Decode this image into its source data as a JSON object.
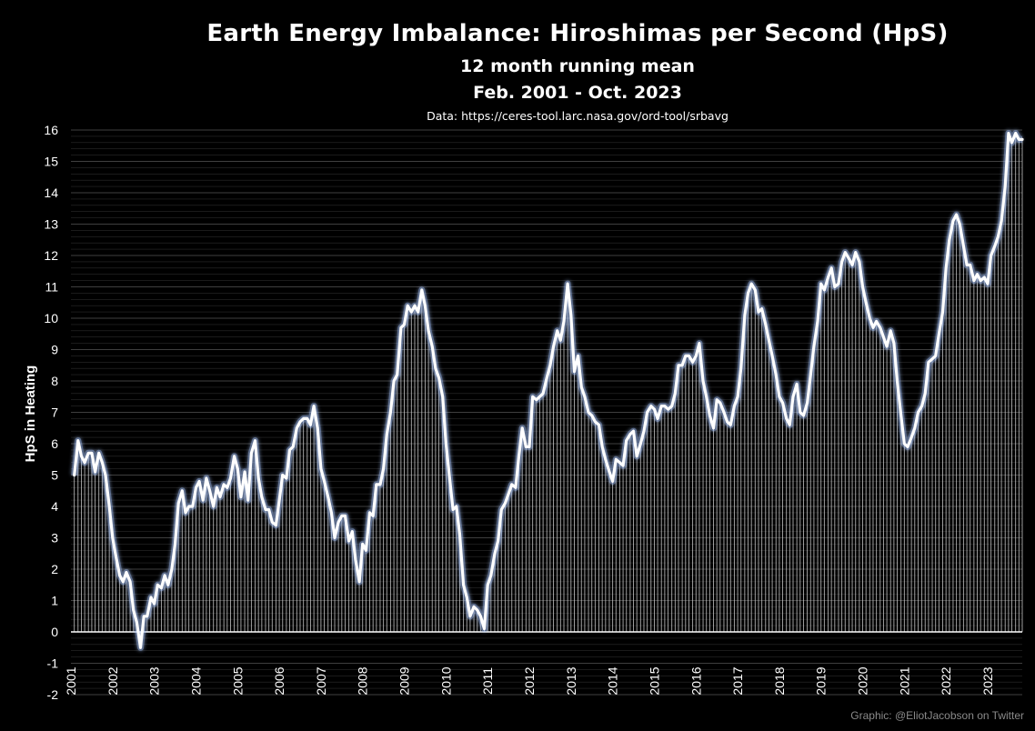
{
  "chart_data": {
    "type": "line",
    "title": "Earth Energy Imbalance: Hiroshimas per Second (HpS)",
    "subtitle": [
      "12 month running mean",
      "Feb. 2001 - Oct. 2023"
    ],
    "source": "Data: https://ceres-tool.larc.nasa.gov/ord-tool/srbavg",
    "credit": "Graphic: @EliotJacobson on Twitter",
    "xlabel": "",
    "ylabel": "HpS in Heating",
    "ylim": [
      -2,
      16
    ],
    "yticks": [
      -2,
      -1,
      0,
      1,
      2,
      3,
      4,
      5,
      6,
      7,
      8,
      9,
      10,
      11,
      12,
      13,
      14,
      15,
      16
    ],
    "xlim": [
      2001.0,
      2023.83
    ],
    "xticks": [
      "2001",
      "2002",
      "2003",
      "2004",
      "2005",
      "2006",
      "2007",
      "2008",
      "2009",
      "2010",
      "2011",
      "2012",
      "2013",
      "2014",
      "2015",
      "2016",
      "2017",
      "2018",
      "2019",
      "2020",
      "2021",
      "2022",
      "2023"
    ],
    "grid": true,
    "line_color": "#ffffff",
    "line_glow": "#a9c7ff",
    "series": [
      {
        "x": [
          2001.08,
          2001.17,
          2001.25,
          2001.33,
          2001.42,
          2001.5,
          2001.58,
          2001.67,
          2001.75,
          2001.83,
          2001.92,
          2002.0,
          2002.08,
          2002.17,
          2002.25,
          2002.33,
          2002.42,
          2002.5,
          2002.58,
          2002.67,
          2002.75,
          2002.83,
          2002.92,
          2003.0,
          2003.08,
          2003.17,
          2003.25,
          2003.33,
          2003.42,
          2003.5,
          2003.58,
          2003.67,
          2003.75,
          2003.83,
          2003.92,
          2004.0,
          2004.08,
          2004.17,
          2004.25,
          2004.33,
          2004.42,
          2004.5,
          2004.58,
          2004.67,
          2004.75,
          2004.83,
          2004.92,
          2005.0,
          2005.08,
          2005.17,
          2005.25,
          2005.33,
          2005.42,
          2005.5,
          2005.58,
          2005.67,
          2005.75,
          2005.83,
          2005.92,
          2006.0,
          2006.08,
          2006.17,
          2006.25,
          2006.33,
          2006.42,
          2006.5,
          2006.58,
          2006.67,
          2006.75,
          2006.83,
          2006.92,
          2007.0,
          2007.08,
          2007.17,
          2007.25,
          2007.33,
          2007.42,
          2007.5,
          2007.58,
          2007.67,
          2007.75,
          2007.83,
          2007.92,
          2008.0,
          2008.08,
          2008.17,
          2008.25,
          2008.33,
          2008.42,
          2008.5,
          2008.58,
          2008.67,
          2008.75,
          2008.83,
          2008.92,
          2009.0,
          2009.08,
          2009.17,
          2009.25,
          2009.33,
          2009.42,
          2009.5,
          2009.58,
          2009.67,
          2009.75,
          2009.83,
          2009.92,
          2010.0,
          2010.08,
          2010.17,
          2010.25,
          2010.33,
          2010.42,
          2010.5,
          2010.58,
          2010.67,
          2010.75,
          2010.83,
          2010.92,
          2011.0,
          2011.08,
          2011.17,
          2011.25,
          2011.33,
          2011.42,
          2011.5,
          2011.58,
          2011.67,
          2011.75,
          2011.83,
          2011.92,
          2012.0,
          2012.08,
          2012.17,
          2012.25,
          2012.33,
          2012.42,
          2012.5,
          2012.58,
          2012.67,
          2012.75,
          2012.83,
          2012.92,
          2013.0,
          2013.08,
          2013.17,
          2013.25,
          2013.33,
          2013.42,
          2013.5,
          2013.58,
          2013.67,
          2013.75,
          2013.83,
          2013.92,
          2014.0,
          2014.08,
          2014.17,
          2014.25,
          2014.33,
          2014.42,
          2014.5,
          2014.58,
          2014.67,
          2014.75,
          2014.83,
          2014.92,
          2015.0,
          2015.08,
          2015.17,
          2015.25,
          2015.33,
          2015.42,
          2015.5,
          2015.58,
          2015.67,
          2015.75,
          2015.83,
          2015.92,
          2016.0,
          2016.08,
          2016.17,
          2016.25,
          2016.33,
          2016.42,
          2016.5,
          2016.58,
          2016.67,
          2016.75,
          2016.83,
          2016.92,
          2017.0,
          2017.08,
          2017.17,
          2017.25,
          2017.33,
          2017.42,
          2017.5,
          2017.58,
          2017.67,
          2017.75,
          2017.83,
          2017.92,
          2018.0,
          2018.08,
          2018.17,
          2018.25,
          2018.33,
          2018.42,
          2018.5,
          2018.58,
          2018.67,
          2018.75,
          2018.83,
          2018.92,
          2019.0,
          2019.08,
          2019.17,
          2019.25,
          2019.33,
          2019.42,
          2019.5,
          2019.58,
          2019.67,
          2019.75,
          2019.83,
          2019.92,
          2020.0,
          2020.08,
          2020.17,
          2020.25,
          2020.33,
          2020.42,
          2020.5,
          2020.58,
          2020.67,
          2020.75,
          2020.83,
          2020.92,
          2021.0,
          2021.08,
          2021.17,
          2021.25,
          2021.33,
          2021.42,
          2021.5,
          2021.58,
          2021.67,
          2021.75,
          2021.83,
          2021.92,
          2022.0,
          2022.08,
          2022.17,
          2022.25,
          2022.33,
          2022.42,
          2022.5,
          2022.58,
          2022.67,
          2022.75,
          2022.83,
          2022.92,
          2023.0,
          2023.08,
          2023.17,
          2023.25,
          2023.33,
          2023.42,
          2023.5,
          2023.58,
          2023.67,
          2023.75,
          2023.83
        ],
        "y": [
          5.0,
          6.1,
          5.6,
          5.4,
          5.7,
          5.7,
          5.1,
          5.7,
          5.4,
          5.0,
          4.0,
          3.0,
          2.4,
          1.8,
          1.6,
          1.9,
          1.6,
          0.7,
          0.3,
          -0.5,
          0.5,
          0.5,
          1.1,
          0.9,
          1.5,
          1.4,
          1.8,
          1.5,
          2.0,
          2.8,
          4.1,
          4.5,
          3.8,
          4.0,
          4.0,
          4.6,
          4.8,
          4.2,
          4.9,
          4.5,
          4.0,
          4.6,
          4.3,
          4.7,
          4.6,
          4.9,
          5.6,
          5.2,
          4.3,
          5.1,
          4.2,
          5.7,
          6.1,
          4.9,
          4.3,
          3.9,
          3.9,
          3.5,
          3.4,
          4.2,
          5.0,
          4.9,
          5.8,
          5.9,
          6.5,
          6.7,
          6.8,
          6.8,
          6.6,
          7.2,
          6.5,
          5.2,
          4.8,
          4.3,
          3.8,
          3.0,
          3.5,
          3.7,
          3.7,
          2.9,
          3.2,
          2.3,
          1.6,
          2.8,
          2.6,
          3.8,
          3.7,
          4.7,
          4.7,
          5.2,
          6.3,
          7.0,
          8.0,
          8.2,
          9.7,
          9.8,
          10.4,
          10.2,
          10.4,
          10.2,
          10.9,
          10.4,
          9.6,
          9.1,
          8.4,
          8.1,
          7.5,
          6.0,
          5.0,
          3.9,
          4.0,
          3.1,
          1.5,
          1.1,
          0.5,
          0.8,
          0.7,
          0.5,
          0.1,
          1.5,
          1.8,
          2.5,
          2.9,
          3.9,
          4.1,
          4.4,
          4.7,
          4.6,
          5.6,
          6.5,
          5.9,
          5.9,
          7.5,
          7.4,
          7.5,
          7.6,
          8.1,
          8.5,
          9.1,
          9.6,
          9.3,
          9.9,
          11.1,
          10.1,
          8.3,
          8.8,
          7.8,
          7.5,
          7.0,
          6.9,
          6.7,
          6.6,
          5.9,
          5.5,
          5.1,
          4.8,
          5.5,
          5.4,
          5.3,
          6.1,
          6.3,
          6.4,
          5.6,
          6.0,
          6.4,
          7.0,
          7.2,
          7.1,
          6.8,
          7.2,
          7.2,
          7.1,
          7.2,
          7.6,
          8.5,
          8.5,
          8.8,
          8.8,
          8.6,
          8.8,
          9.2,
          8.0,
          7.5,
          6.9,
          6.5,
          7.4,
          7.3,
          7.0,
          6.7,
          6.6,
          7.2,
          7.5,
          8.4,
          10.1,
          10.8,
          11.1,
          10.9,
          10.2,
          10.3,
          9.8,
          9.3,
          8.8,
          8.2,
          7.5,
          7.3,
          6.8,
          6.6,
          7.5,
          7.9,
          7.0,
          6.9,
          7.3,
          8.2,
          9.1,
          9.9,
          11.1,
          10.9,
          11.3,
          11.6,
          11.0,
          11.1,
          11.8,
          12.1,
          11.9,
          11.7,
          12.1,
          11.8,
          11.0,
          10.5,
          10.0,
          9.7,
          9.9,
          9.7,
          9.4,
          9.1,
          9.6,
          9.2,
          8.0,
          6.9,
          6.0,
          5.9,
          6.2,
          6.5,
          7.0,
          7.2,
          7.6,
          8.6,
          8.7,
          8.8,
          9.5,
          10.2,
          11.6,
          12.5,
          13.1,
          13.3,
          13.0,
          12.3,
          11.7,
          11.7,
          11.2,
          11.4,
          11.2,
          11.3,
          11.1,
          12.0,
          12.3,
          12.6,
          13.1,
          14.2,
          15.9,
          15.6,
          15.9,
          15.7,
          15.7
        ]
      }
    ]
  }
}
